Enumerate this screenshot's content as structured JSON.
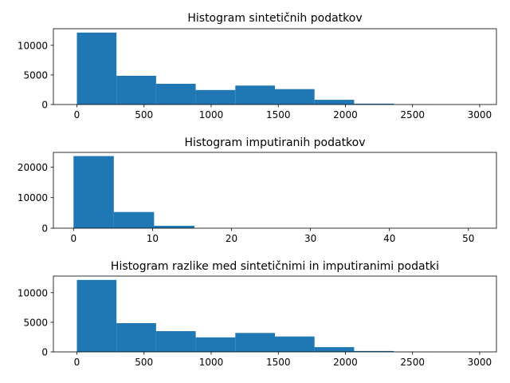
{
  "chart_data": [
    {
      "type": "bar",
      "title": "Histogram sintetičnih podatkov",
      "xlim": [
        -175,
        3125
      ],
      "ylim": [
        0,
        12800
      ],
      "xticks": [
        0,
        500,
        1000,
        1500,
        2000,
        2500,
        3000
      ],
      "yticks": [
        0,
        5000,
        10000
      ],
      "bin_edges": [
        0,
        295,
        590,
        885,
        1180,
        1475,
        1770,
        2065,
        2360,
        2655,
        2950
      ],
      "values": [
        12150,
        4850,
        3500,
        2450,
        3200,
        2600,
        800,
        150,
        20,
        10
      ],
      "color": "#1f77b4"
    },
    {
      "type": "bar",
      "title": "Histogram imputiranih podatkov",
      "xlim": [
        -2.55,
        53.55
      ],
      "ylim": [
        0,
        24800
      ],
      "xticks": [
        0,
        10,
        20,
        30,
        40,
        50
      ],
      "yticks": [
        0,
        10000,
        20000
      ],
      "bin_edges": [
        0,
        5.1,
        10.2,
        15.3,
        20.4,
        25.5,
        30.6,
        35.7,
        40.8,
        45.9,
        51
      ],
      "values": [
        23600,
        5300,
        800,
        0,
        0,
        0,
        0,
        0,
        0,
        0
      ],
      "color": "#1f77b4"
    },
    {
      "type": "bar",
      "title": "Histogram razlike med sintetičnimi in imputiranimi podatki",
      "xlim": [
        -175,
        3125
      ],
      "ylim": [
        0,
        12800
      ],
      "xticks": [
        0,
        500,
        1000,
        1500,
        2000,
        2500,
        3000
      ],
      "yticks": [
        0,
        5000,
        10000
      ],
      "bin_edges": [
        0,
        295,
        590,
        885,
        1180,
        1475,
        1770,
        2065,
        2360,
        2655,
        2950
      ],
      "values": [
        12150,
        4850,
        3500,
        2450,
        3200,
        2600,
        800,
        150,
        20,
        10
      ],
      "color": "#1f77b4"
    }
  ]
}
